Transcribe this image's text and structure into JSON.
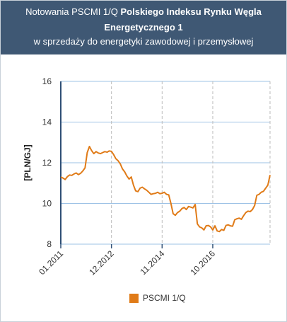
{
  "header": {
    "title_prefix": "Notowania PSCMI 1/Q ",
    "title_bold_1": "Polskiego Indeksu Rynku Węgla",
    "title_bold_2": "Energetycznego 1",
    "subtitle": "w sprzedaży do energetyki zawodowej i przemysłowej"
  },
  "colors": {
    "header_bg": "#3f5874",
    "series": "#e07b18",
    "grid": "#9ec3e6",
    "axis": "#2f4f75"
  },
  "chart_data": {
    "type": "line",
    "ylabel": "[PLN/GJ]",
    "xlabel": "",
    "ylim": [
      8,
      16
    ],
    "yticks": [
      8,
      10,
      12,
      14,
      16
    ],
    "xticks": [
      "01.2011",
      "12.2012",
      "11.2014",
      "10.2016"
    ],
    "x_range_months": [
      "01.2011",
      "12.2018"
    ],
    "legend_position": "bottom-center",
    "series": [
      {
        "name": "PSCMI 1/Q",
        "color": "#e07b18",
        "x": [
          "01.2011",
          "02.2011",
          "03.2011",
          "04.2011",
          "05.2011",
          "06.2011",
          "07.2011",
          "08.2011",
          "09.2011",
          "10.2011",
          "11.2011",
          "12.2011",
          "01.2012",
          "02.2012",
          "03.2012",
          "04.2012",
          "05.2012",
          "06.2012",
          "07.2012",
          "08.2012",
          "09.2012",
          "10.2012",
          "11.2012",
          "12.2012",
          "01.2013",
          "02.2013",
          "03.2013",
          "04.2013",
          "05.2013",
          "06.2013",
          "07.2013",
          "08.2013",
          "09.2013",
          "10.2013",
          "11.2013",
          "12.2013",
          "01.2014",
          "02.2014",
          "03.2014",
          "04.2014",
          "05.2014",
          "06.2014",
          "07.2014",
          "08.2014",
          "09.2014",
          "10.2014",
          "11.2014",
          "12.2014",
          "01.2015",
          "02.2015",
          "03.2015",
          "04.2015",
          "05.2015",
          "06.2015",
          "07.2015",
          "08.2015",
          "09.2015",
          "10.2015",
          "11.2015",
          "12.2015",
          "01.2016",
          "02.2016",
          "03.2016",
          "04.2016",
          "05.2016",
          "06.2016",
          "07.2016",
          "08.2016",
          "09.2016",
          "10.2016",
          "11.2016",
          "12.2016",
          "01.2017",
          "02.2017",
          "03.2017",
          "04.2017",
          "05.2017",
          "06.2017",
          "07.2017",
          "08.2017",
          "09.2017",
          "10.2017",
          "11.2017",
          "12.2017",
          "01.2018",
          "02.2018",
          "03.2018",
          "04.2018",
          "05.2018",
          "06.2018",
          "07.2018",
          "08.2018",
          "09.2018",
          "10.2018",
          "11.2018",
          "12.2018"
        ],
        "values": [
          11.3,
          11.25,
          11.18,
          11.32,
          11.4,
          11.38,
          11.45,
          11.5,
          11.42,
          11.48,
          11.6,
          11.75,
          12.5,
          12.8,
          12.6,
          12.45,
          12.55,
          12.48,
          12.45,
          12.5,
          12.55,
          12.52,
          12.58,
          12.56,
          12.4,
          12.2,
          12.1,
          11.95,
          11.7,
          11.55,
          11.35,
          11.2,
          11.3,
          10.9,
          10.62,
          10.58,
          10.75,
          10.8,
          10.72,
          10.65,
          10.55,
          10.45,
          10.48,
          10.5,
          10.55,
          10.48,
          10.5,
          10.55,
          10.45,
          10.42,
          10.0,
          9.5,
          9.42,
          9.55,
          9.62,
          9.75,
          9.8,
          9.7,
          9.85,
          9.82,
          9.78,
          9.95,
          9.0,
          8.85,
          8.8,
          8.7,
          8.9,
          8.92,
          8.85,
          8.7,
          8.9,
          8.65,
          8.62,
          8.72,
          8.68,
          8.92,
          8.95,
          8.9,
          8.88,
          9.2,
          9.25,
          9.28,
          9.22,
          9.4,
          9.55,
          9.62,
          9.6,
          9.7,
          9.9,
          10.4,
          10.45,
          10.55,
          10.6,
          10.75,
          10.9,
          11.4
        ]
      }
    ]
  }
}
